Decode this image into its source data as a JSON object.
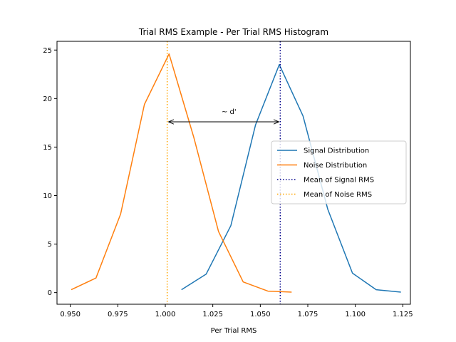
{
  "chart_data": {
    "type": "line",
    "title": "Trial RMS Example - Per Trial RMS Histogram",
    "xlabel": "Per Trial RMS",
    "ylabel": "",
    "xlim": [
      0.943,
      1.129
    ],
    "ylim": [
      -1.2,
      25.9
    ],
    "xticks": [
      0.95,
      0.975,
      1.0,
      1.025,
      1.05,
      1.075,
      1.1,
      1.125
    ],
    "xtick_labels": [
      "0.950",
      "0.975",
      "1.000",
      "1.025",
      "1.050",
      "1.075",
      "1.100",
      "1.125"
    ],
    "yticks": [
      0,
      5,
      10,
      15,
      20,
      25
    ],
    "ytick_labels": [
      "0",
      "5",
      "10",
      "15",
      "20",
      "25"
    ],
    "grid": false,
    "legend_position": "center-right",
    "series": [
      {
        "name": "Signal Distribution",
        "color": "#1f77b4",
        "style": "solid",
        "x": [
          1.0085,
          1.0215,
          1.0345,
          1.0475,
          1.06,
          1.0725,
          1.0855,
          1.0985,
          1.111,
          1.124
        ],
        "y": [
          0.3,
          1.9,
          6.9,
          17.3,
          23.5,
          18.2,
          8.6,
          2.0,
          0.3,
          0.05
        ]
      },
      {
        "name": "Noise Distribution",
        "color": "#ff7f0e",
        "style": "solid",
        "x": [
          0.9505,
          0.9635,
          0.9765,
          0.989,
          1.002,
          1.015,
          1.028,
          1.041,
          1.054,
          1.0665
        ],
        "y": [
          0.3,
          1.5,
          8.1,
          19.4,
          24.6,
          16.0,
          6.3,
          1.1,
          0.15,
          0.05
        ]
      }
    ],
    "vlines": [
      {
        "name": "Mean of Signal RMS",
        "x": 1.0605,
        "color": "#00008b",
        "style": "dotted"
      },
      {
        "name": "Mean of Noise RMS",
        "x": 1.001,
        "color": "#ffa500",
        "style": "dotted"
      }
    ],
    "annotation": {
      "text": "~ d'",
      "x1": 1.001,
      "x2": 1.0605,
      "y": 17.6,
      "text_x": 1.0335,
      "text_y": 18.4
    }
  }
}
